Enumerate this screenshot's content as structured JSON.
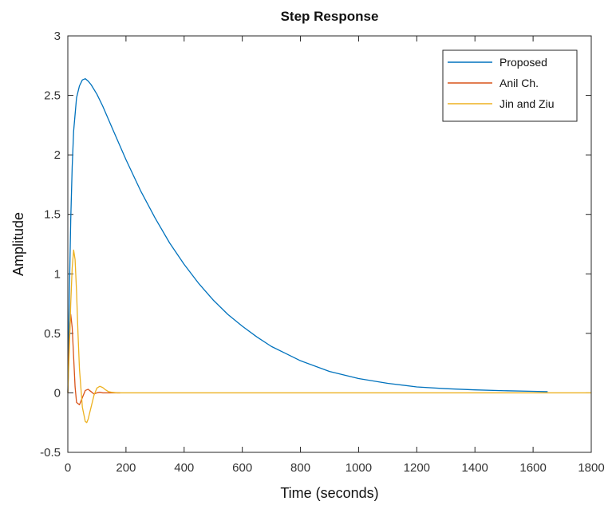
{
  "chart_data": {
    "type": "line",
    "title": "Step Response",
    "xlabel": "Time (seconds)",
    "ylabel": "Amplitude",
    "xlim": [
      0,
      1800
    ],
    "ylim": [
      -0.5,
      3
    ],
    "x_ticks": [
      0,
      200,
      400,
      600,
      800,
      1000,
      1200,
      1400,
      1600,
      1800
    ],
    "y_ticks": [
      -0.5,
      0,
      0.5,
      1,
      1.5,
      2,
      2.5,
      3
    ],
    "grid": false,
    "legend_position": "top-right",
    "series": [
      {
        "name": "Proposed",
        "color": "#0072BD",
        "x": [
          0,
          5,
          10,
          15,
          20,
          30,
          40,
          50,
          60,
          70,
          80,
          100,
          120,
          150,
          200,
          250,
          300,
          350,
          400,
          450,
          500,
          550,
          600,
          650,
          700,
          750,
          800,
          900,
          1000,
          1100,
          1200,
          1300,
          1400,
          1500,
          1600,
          1650
        ],
        "y": [
          0,
          0.8,
          1.45,
          1.9,
          2.2,
          2.48,
          2.58,
          2.63,
          2.64,
          2.62,
          2.59,
          2.51,
          2.41,
          2.24,
          1.96,
          1.7,
          1.47,
          1.26,
          1.08,
          0.92,
          0.78,
          0.66,
          0.56,
          0.47,
          0.39,
          0.33,
          0.27,
          0.18,
          0.12,
          0.08,
          0.05,
          0.035,
          0.025,
          0.018,
          0.013,
          0.01
        ]
      },
      {
        "name": "Anil Ch.",
        "color": "#D95319",
        "x": [
          0,
          5,
          10,
          15,
          20,
          25,
          30,
          40,
          50,
          60,
          70,
          80,
          90,
          100,
          110,
          120,
          130,
          140,
          160,
          180
        ],
        "y": [
          0,
          0.45,
          0.66,
          0.55,
          0.3,
          0.05,
          -0.08,
          -0.1,
          -0.04,
          0.02,
          0.03,
          0.01,
          -0.01,
          0,
          0.005,
          0,
          0,
          0,
          0,
          0
        ]
      },
      {
        "name": "Jin and Ziu",
        "color": "#EDB120",
        "x": [
          0,
          5,
          10,
          15,
          20,
          25,
          30,
          35,
          40,
          50,
          60,
          65,
          70,
          80,
          90,
          100,
          110,
          120,
          130,
          140,
          150,
          170,
          200,
          300,
          500,
          800,
          1200,
          1800
        ],
        "y": [
          0,
          0.35,
          0.75,
          1.05,
          1.2,
          1.12,
          0.85,
          0.5,
          0.2,
          -0.12,
          -0.24,
          -0.25,
          -0.22,
          -0.12,
          -0.02,
          0.04,
          0.055,
          0.045,
          0.025,
          0.01,
          0.005,
          0,
          0,
          0,
          0,
          0,
          0,
          0
        ]
      }
    ]
  }
}
